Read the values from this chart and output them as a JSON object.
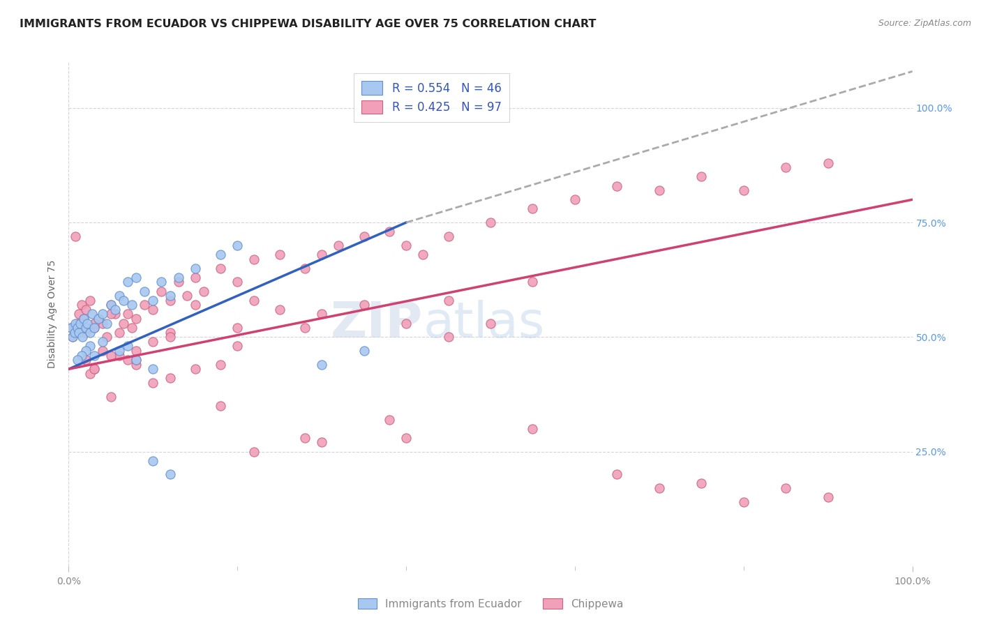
{
  "title": "IMMIGRANTS FROM ECUADOR VS CHIPPEWA DISABILITY AGE OVER 75 CORRELATION CHART",
  "source": "Source: ZipAtlas.com",
  "ylabel": "Disability Age Over 75",
  "legend_label1": "Immigrants from Ecuador",
  "legend_label2": "Chippewa",
  "R1": 0.554,
  "N1": 46,
  "R2": 0.425,
  "N2": 97,
  "color_blue_fill": "#A8C8F0",
  "color_blue_edge": "#6090D0",
  "color_pink_fill": "#F0A0B8",
  "color_pink_edge": "#D06080",
  "color_blue_line": "#3060C0",
  "color_pink_line": "#D04070",
  "color_dash": "#AAAAAA",
  "background_color": "#FFFFFF",
  "grid_color": "#D8D0E0",
  "watermark_zip": "ZIP",
  "watermark_atlas": "atlas",
  "blue_line_x0": 0.0,
  "blue_line_y0": 43.0,
  "blue_line_x1": 40.0,
  "blue_line_y1": 75.0,
  "blue_dash_x1": 100.0,
  "blue_dash_y1": 108.0,
  "pink_line_x0": 0.0,
  "pink_line_y0": 43.0,
  "pink_line_x1": 100.0,
  "pink_line_y1": 80.0,
  "xmin": 0,
  "xmax": 100,
  "ymin": 0,
  "ymax": 110,
  "blue_pts_x": [
    0.3,
    0.5,
    0.7,
    0.8,
    1.0,
    1.2,
    1.4,
    1.6,
    1.8,
    2.0,
    2.2,
    2.5,
    2.8,
    3.0,
    3.5,
    4.0,
    4.5,
    5.0,
    5.5,
    6.0,
    6.5,
    7.0,
    7.5,
    8.0,
    9.0,
    10.0,
    11.0,
    12.0,
    13.0,
    15.0,
    18.0,
    20.0,
    8.0,
    10.0,
    6.0,
    7.0,
    3.0,
    4.0,
    2.5,
    2.0,
    1.5,
    1.0,
    30.0,
    35.0,
    10.0,
    12.0
  ],
  "blue_pts_y": [
    52,
    50,
    51,
    53,
    52,
    51,
    53,
    50,
    54,
    52,
    53,
    51,
    55,
    52,
    54,
    55,
    53,
    57,
    56,
    59,
    58,
    62,
    57,
    63,
    60,
    58,
    62,
    59,
    63,
    65,
    68,
    70,
    45,
    43,
    47,
    48,
    46,
    49,
    48,
    47,
    46,
    45,
    44,
    47,
    23,
    20
  ],
  "pink_pts_x": [
    0.3,
    0.5,
    0.8,
    1.0,
    1.2,
    1.5,
    1.8,
    2.0,
    2.5,
    3.0,
    3.5,
    4.0,
    4.5,
    5.0,
    5.5,
    6.0,
    6.5,
    7.0,
    7.5,
    8.0,
    9.0,
    10.0,
    11.0,
    12.0,
    13.0,
    14.0,
    15.0,
    16.0,
    18.0,
    20.0,
    22.0,
    25.0,
    28.0,
    30.0,
    32.0,
    35.0,
    38.0,
    40.0,
    42.0,
    45.0,
    50.0,
    55.0,
    60.0,
    65.0,
    70.0,
    75.0,
    80.0,
    85.0,
    90.0,
    2.0,
    3.0,
    5.0,
    8.0,
    10.0,
    12.0,
    15.0,
    20.0,
    25.0,
    30.0,
    35.0,
    40.0,
    45.0,
    50.0,
    10.0,
    12.0,
    15.0,
    20.0,
    18.0,
    6.0,
    8.0,
    4.0,
    7.0,
    5.0,
    3.0,
    2.5,
    28.0,
    40.0,
    55.0,
    70.0,
    80.0,
    90.0,
    55.0,
    45.0,
    38.0,
    30.0,
    22.0,
    18.0,
    12.0,
    8.0,
    5.0,
    3.0,
    2.0,
    85.0,
    65.0,
    75.0,
    22.0,
    28.0
  ],
  "pink_pts_y": [
    52,
    50,
    72,
    53,
    55,
    57,
    54,
    56,
    58,
    52,
    54,
    53,
    50,
    57,
    55,
    51,
    53,
    55,
    52,
    54,
    57,
    56,
    60,
    58,
    62,
    59,
    63,
    60,
    65,
    62,
    67,
    68,
    65,
    68,
    70,
    72,
    73,
    70,
    68,
    72,
    75,
    78,
    80,
    83,
    82,
    85,
    82,
    87,
    88,
    51,
    53,
    55,
    47,
    49,
    51,
    57,
    52,
    56,
    55,
    57,
    53,
    50,
    53,
    40,
    41,
    43,
    48,
    44,
    46,
    44,
    47,
    45,
    46,
    43,
    42,
    28,
    28,
    30,
    17,
    14,
    15,
    62,
    58,
    32,
    27,
    25,
    35,
    50,
    45,
    37,
    43,
    45,
    17,
    20,
    18,
    58,
    52
  ]
}
